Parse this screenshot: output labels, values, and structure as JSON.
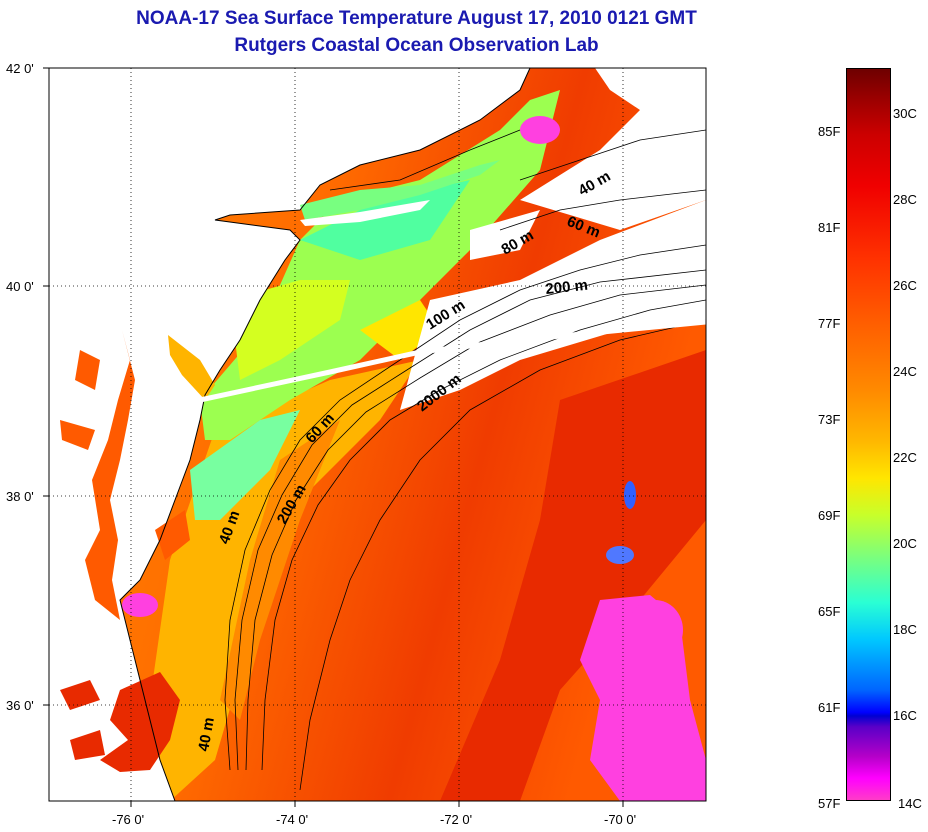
{
  "title": {
    "line1": "NOAA-17 Sea Surface Temperature August 17, 2010 0121 GMT",
    "line2": "Rutgers Coastal Ocean Observation Lab"
  },
  "axes": {
    "lat_labels": [
      "42 0'",
      "40 0'",
      "38 0'",
      "36 0'"
    ],
    "lon_labels": [
      "-76 0'",
      "-74 0'",
      "-72 0'",
      "-70 0'"
    ]
  },
  "contours": {
    "labels": [
      "40 m",
      "60 m",
      "80 m",
      "200 m",
      "100 m",
      "2000 m",
      "60 m",
      "40 m",
      "200 m",
      "40 m"
    ]
  },
  "colorbar": {
    "fahrenheit": [
      "85F",
      "81F",
      "77F",
      "73F",
      "69F",
      "65F",
      "61F",
      "57F"
    ],
    "celsius": [
      "30C",
      "28C",
      "26C",
      "24C",
      "22C",
      "20C",
      "18C",
      "16C",
      "14C"
    ]
  },
  "colors": {
    "title": "#1a1ab0",
    "land": "#ffffff",
    "warm_ocean": "#ff5a00",
    "gulf_stream": "#e82a00",
    "shelf_water": "#9cff50",
    "cold_water": "#ff40e0",
    "cloud": "#ffffff"
  }
}
